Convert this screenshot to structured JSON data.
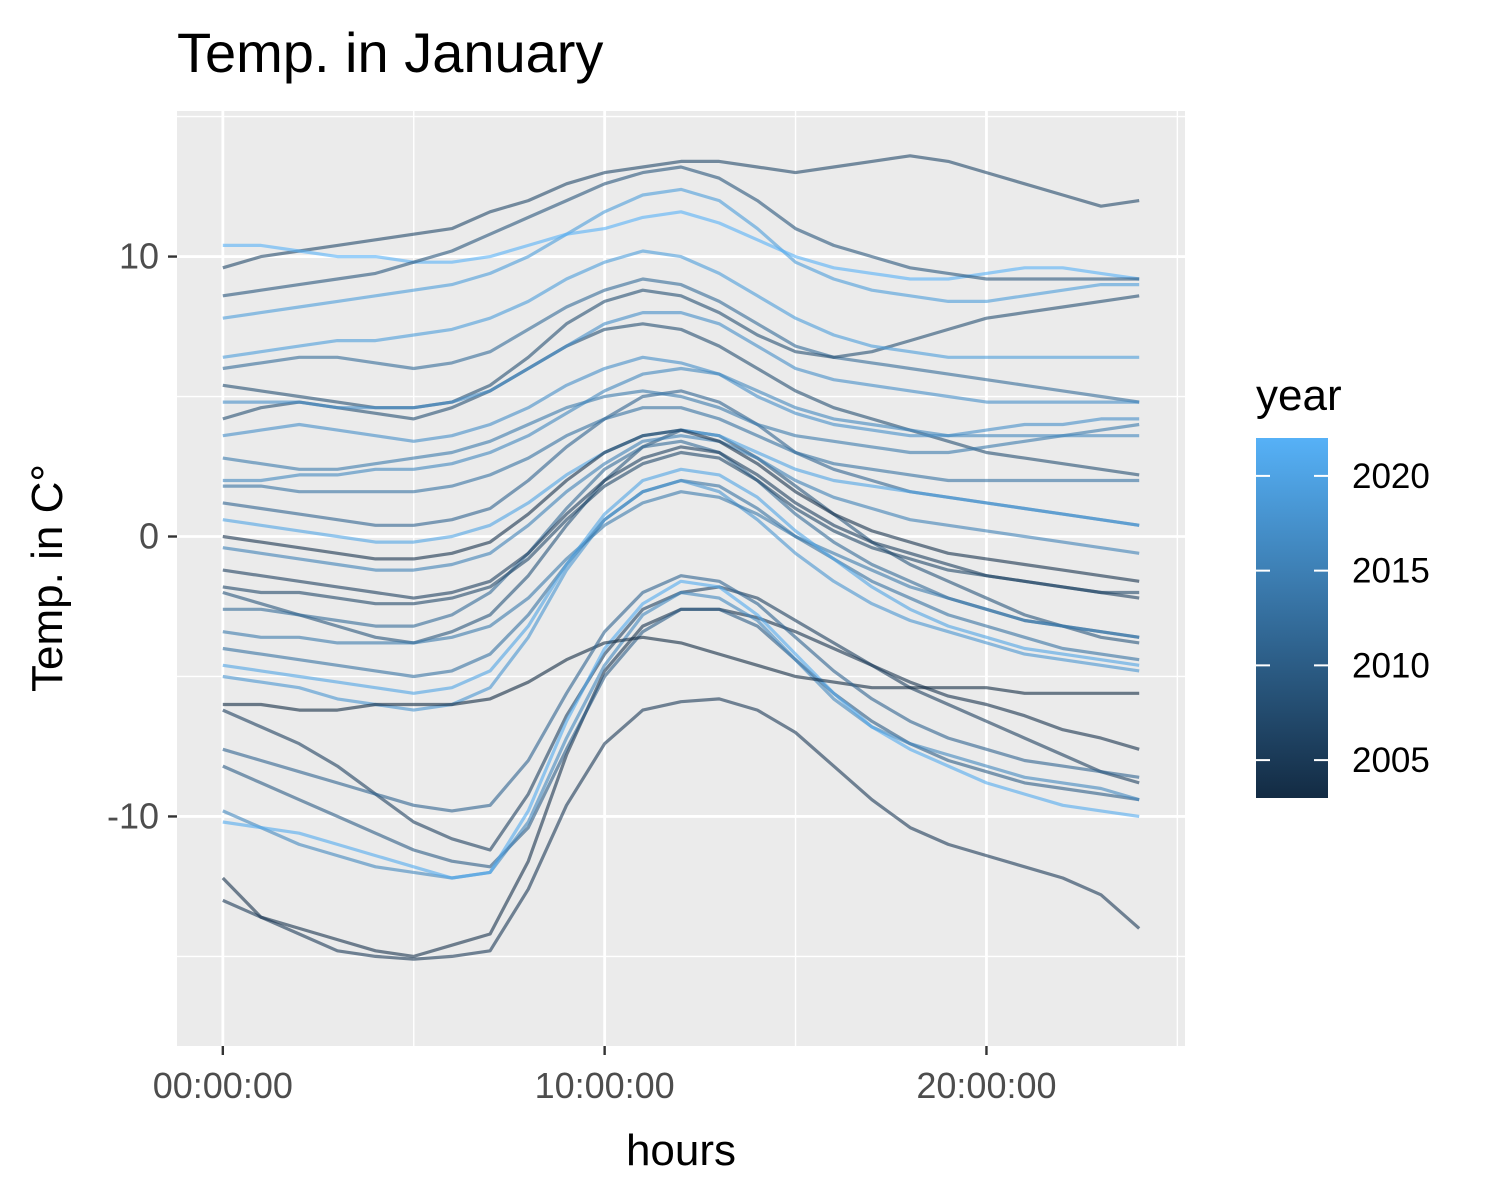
{
  "chart_data": {
    "type": "line",
    "title": "Temp. in January",
    "xlabel": "hours",
    "ylabel": "Temp. in C°",
    "x_axis": {
      "unit": "hours",
      "range": [
        -1.2,
        25.2
      ],
      "major_ticks": [
        0,
        10,
        20
      ],
      "tick_labels": [
        "00:00:00",
        "10:00:00",
        "20:00:00"
      ]
    },
    "y_axis": {
      "range": [
        -18.2,
        15.2
      ],
      "major_ticks": [
        -10,
        0,
        10
      ],
      "tick_labels": [
        "-10",
        "0",
        "10"
      ]
    },
    "grid": true,
    "panel_background": "#ebebeb",
    "grid_color": "#ffffff",
    "line_opacity": 0.6,
    "legend": {
      "title": "year",
      "placement": "right",
      "type": "colorbar",
      "range": [
        2003,
        2022
      ],
      "ticks": [
        2005,
        2010,
        2015,
        2020
      ],
      "tick_labels": [
        "2005",
        "2010",
        "2015",
        "2020"
      ],
      "color_low": "#132b43",
      "color_high": "#56b1f7"
    },
    "series": [
      {
        "year": 2004,
        "values": [
          -12.2,
          -13.6,
          -14.0,
          -14.4,
          -14.8,
          -15.0,
          -14.6,
          -14.2,
          -11.6,
          -7.8,
          -4.8,
          -3.2,
          -2.6,
          -2.6,
          -2.9,
          -3.4,
          -4.0,
          -4.6,
          -5.2,
          -5.7,
          -6.0,
          -6.4,
          -6.9,
          -7.2,
          -7.6
        ]
      },
      {
        "year": 2005,
        "values": [
          -13.0,
          -13.6,
          -14.2,
          -14.8,
          -15.0,
          -15.1,
          -15.0,
          -14.8,
          -12.6,
          -9.6,
          -7.4,
          -6.2,
          -5.9,
          -5.8,
          -6.2,
          -7.0,
          -8.2,
          -9.4,
          -10.4,
          -11.0,
          -11.4,
          -11.8,
          -12.2,
          -12.8,
          -14.0
        ]
      },
      {
        "year": 2006,
        "values": [
          -6.2,
          -6.8,
          -7.4,
          -8.2,
          -9.2,
          -10.2,
          -10.8,
          -11.2,
          -9.2,
          -6.4,
          -4.2,
          -2.6,
          -2.0,
          -1.8,
          -2.2,
          -3.0,
          -3.8,
          -4.6,
          -5.4,
          -6.0,
          -6.6,
          -7.2,
          -7.8,
          -8.4,
          -8.8
        ]
      },
      {
        "year": 2007,
        "values": [
          9.6,
          10.0,
          10.2,
          10.4,
          10.6,
          10.8,
          11.0,
          11.6,
          12.0,
          12.6,
          13.0,
          13.2,
          13.4,
          13.4,
          13.2,
          13.0,
          13.2,
          13.4,
          13.6,
          13.4,
          13.0,
          12.6,
          12.2,
          11.8,
          12.0
        ]
      },
      {
        "year": 2008,
        "values": [
          4.2,
          4.6,
          4.8,
          4.6,
          4.4,
          4.2,
          4.6,
          5.2,
          6.0,
          6.8,
          7.4,
          7.6,
          7.4,
          6.8,
          6.0,
          5.2,
          4.6,
          4.2,
          3.8,
          3.4,
          3.0,
          2.8,
          2.6,
          2.4,
          2.2
        ]
      },
      {
        "year": 2009,
        "values": [
          -2.0,
          -2.4,
          -2.8,
          -3.2,
          -3.6,
          -3.8,
          -3.4,
          -2.8,
          -1.4,
          0.4,
          2.0,
          3.2,
          3.8,
          3.6,
          2.8,
          1.8,
          0.8,
          -0.2,
          -1.0,
          -1.6,
          -2.2,
          -2.8,
          -3.2,
          -3.6,
          -3.8
        ]
      },
      {
        "year": 2010,
        "values": [
          -8.2,
          -8.8,
          -9.4,
          -10.0,
          -10.6,
          -11.2,
          -11.6,
          -11.8,
          -10.4,
          -7.6,
          -5.0,
          -3.4,
          -2.6,
          -2.6,
          -3.2,
          -4.4,
          -5.6,
          -6.6,
          -7.4,
          -8.0,
          -8.4,
          -8.8,
          -9.0,
          -9.2,
          -9.4
        ]
      },
      {
        "year": 2011,
        "values": [
          1.2,
          1.0,
          0.8,
          0.6,
          0.4,
          0.4,
          0.6,
          1.0,
          2.0,
          3.2,
          4.2,
          5.0,
          5.2,
          4.8,
          4.0,
          3.0,
          2.4,
          2.0,
          1.6,
          1.4,
          1.2,
          1.0,
          0.8,
          0.6,
          0.4
        ]
      },
      {
        "year": 2012,
        "values": [
          6.0,
          6.2,
          6.4,
          6.4,
          6.2,
          6.0,
          6.2,
          6.6,
          7.4,
          8.2,
          8.8,
          9.2,
          9.0,
          8.4,
          7.6,
          6.8,
          6.4,
          6.2,
          6.0,
          5.8,
          5.6,
          5.4,
          5.2,
          5.0,
          4.8
        ]
      },
      {
        "year": 2013,
        "values": [
          -4.0,
          -4.2,
          -4.4,
          -4.6,
          -4.8,
          -5.0,
          -4.8,
          -4.2,
          -2.8,
          -1.0,
          0.6,
          1.6,
          2.0,
          1.8,
          1.0,
          0.0,
          -0.8,
          -1.6,
          -2.2,
          -2.8,
          -3.2,
          -3.6,
          -4.0,
          -4.2,
          -4.4
        ]
      },
      {
        "year": 2014,
        "values": [
          2.8,
          2.6,
          2.4,
          2.4,
          2.6,
          2.8,
          3.0,
          3.4,
          4.0,
          4.6,
          5.0,
          5.2,
          5.0,
          4.6,
          4.0,
          3.6,
          3.4,
          3.2,
          3.0,
          3.0,
          3.2,
          3.4,
          3.6,
          3.8,
          4.0
        ]
      },
      {
        "year": 2015,
        "values": [
          -0.4,
          -0.6,
          -0.8,
          -1.0,
          -1.2,
          -1.2,
          -1.0,
          -0.6,
          0.4,
          1.6,
          2.6,
          3.4,
          3.6,
          3.4,
          2.8,
          2.0,
          1.4,
          1.0,
          0.6,
          0.4,
          0.2,
          0.0,
          -0.2,
          -0.4,
          -0.6
        ]
      },
      {
        "year": 2016,
        "values": [
          -9.8,
          -10.4,
          -11.0,
          -11.4,
          -11.8,
          -12.0,
          -12.2,
          -12.0,
          -10.2,
          -7.2,
          -4.6,
          -2.8,
          -2.0,
          -2.2,
          -3.0,
          -4.4,
          -5.8,
          -6.8,
          -7.4,
          -7.8,
          -8.2,
          -8.6,
          -8.8,
          -9.0,
          -9.4
        ]
      },
      {
        "year": 2017,
        "values": [
          3.6,
          3.8,
          4.0,
          3.8,
          3.6,
          3.4,
          3.6,
          4.0,
          4.6,
          5.4,
          6.0,
          6.4,
          6.2,
          5.8,
          5.0,
          4.4,
          4.0,
          3.8,
          3.6,
          3.6,
          3.8,
          4.0,
          4.0,
          4.2,
          4.2
        ]
      },
      {
        "year": 2018,
        "values": [
          -5.0,
          -5.2,
          -5.4,
          -5.8,
          -6.0,
          -6.2,
          -6.0,
          -5.4,
          -3.6,
          -1.2,
          0.6,
          1.6,
          2.0,
          1.6,
          0.6,
          -0.6,
          -1.6,
          -2.4,
          -3.0,
          -3.4,
          -3.8,
          -4.2,
          -4.4,
          -4.6,
          -4.8
        ]
      },
      {
        "year": 2019,
        "values": [
          7.8,
          8.0,
          8.2,
          8.4,
          8.6,
          8.8,
          9.0,
          9.4,
          10.0,
          10.8,
          11.6,
          12.2,
          12.4,
          12.0,
          11.0,
          9.8,
          9.2,
          8.8,
          8.6,
          8.4,
          8.4,
          8.6,
          8.8,
          9.0,
          9.0
        ]
      },
      {
        "year": 2020,
        "values": [
          0.6,
          0.4,
          0.2,
          0.0,
          -0.2,
          -0.2,
          0.0,
          0.4,
          1.2,
          2.2,
          3.0,
          3.6,
          3.8,
          3.6,
          3.0,
          2.4,
          2.0,
          1.8,
          1.6,
          1.4,
          1.2,
          1.0,
          0.8,
          0.6,
          0.4
        ]
      },
      {
        "year": 2021,
        "values": [
          -10.2,
          -10.4,
          -10.6,
          -11.0,
          -11.4,
          -11.8,
          -12.2,
          -12.0,
          -9.8,
          -6.6,
          -4.0,
          -2.4,
          -1.6,
          -1.8,
          -2.8,
          -4.2,
          -5.6,
          -6.8,
          -7.6,
          -8.2,
          -8.8,
          -9.2,
          -9.6,
          -9.8,
          -10.0
        ]
      },
      {
        "year": 2022,
        "values": [
          10.4,
          10.4,
          10.2,
          10.0,
          10.0,
          9.8,
          9.8,
          10.0,
          10.4,
          10.8,
          11.0,
          11.4,
          11.6,
          11.2,
          10.6,
          10.0,
          9.6,
          9.4,
          9.2,
          9.2,
          9.4,
          9.6,
          9.6,
          9.4,
          9.2
        ]
      },
      {
        "year": 2003,
        "values": [
          -6.0,
          -6.0,
          -6.2,
          -6.2,
          -6.0,
          -6.0,
          -6.0,
          -5.8,
          -5.2,
          -4.4,
          -3.8,
          -3.6,
          -3.8,
          -4.2,
          -4.6,
          -5.0,
          -5.2,
          -5.4,
          -5.4,
          -5.4,
          -5.4,
          -5.6,
          -5.6,
          -5.6,
          -5.6
        ]
      },
      {
        "year": 2012,
        "values": [
          -2.6,
          -2.6,
          -2.8,
          -3.0,
          -3.2,
          -3.2,
          -2.8,
          -2.0,
          -0.6,
          1.0,
          2.4,
          3.2,
          3.4,
          3.0,
          2.0,
          0.8,
          -0.2,
          -1.0,
          -1.6,
          -2.2,
          -2.6,
          -3.0,
          -3.2,
          -3.4,
          -3.6
        ]
      },
      {
        "year": 2008,
        "values": [
          5.4,
          5.2,
          5.0,
          4.8,
          4.6,
          4.6,
          4.8,
          5.4,
          6.4,
          7.6,
          8.4,
          8.8,
          8.6,
          8.0,
          7.2,
          6.6,
          6.4,
          6.6,
          7.0,
          7.4,
          7.8,
          8.0,
          8.2,
          8.4,
          8.6
        ]
      },
      {
        "year": 2006,
        "values": [
          -1.2,
          -1.4,
          -1.6,
          -1.8,
          -2.0,
          -2.2,
          -2.0,
          -1.6,
          -0.6,
          0.8,
          2.0,
          2.8,
          3.2,
          3.0,
          2.2,
          1.2,
          0.4,
          -0.2,
          -0.6,
          -1.0,
          -1.4,
          -1.6,
          -1.8,
          -2.0,
          -2.2
        ]
      },
      {
        "year": 2016,
        "values": [
          2.0,
          2.0,
          2.2,
          2.2,
          2.4,
          2.4,
          2.6,
          3.0,
          3.6,
          4.4,
          5.2,
          5.8,
          6.0,
          5.8,
          5.2,
          4.6,
          4.2,
          4.0,
          3.8,
          3.6,
          3.6,
          3.6,
          3.6,
          3.6,
          3.6
        ]
      },
      {
        "year": 2011,
        "values": [
          -7.6,
          -8.0,
          -8.4,
          -8.8,
          -9.2,
          -9.6,
          -9.8,
          -9.6,
          -8.0,
          -5.6,
          -3.4,
          -2.0,
          -1.4,
          -1.6,
          -2.4,
          -3.6,
          -4.8,
          -5.8,
          -6.6,
          -7.2,
          -7.6,
          -8.0,
          -8.2,
          -8.4,
          -8.6
        ]
      },
      {
        "year": 2019,
        "values": [
          6.4,
          6.6,
          6.8,
          7.0,
          7.0,
          7.2,
          7.4,
          7.8,
          8.4,
          9.2,
          9.8,
          10.2,
          10.0,
          9.4,
          8.6,
          7.8,
          7.2,
          6.8,
          6.6,
          6.4,
          6.4,
          6.4,
          6.4,
          6.4,
          6.4
        ]
      },
      {
        "year": 2004,
        "values": [
          0.0,
          -0.2,
          -0.4,
          -0.6,
          -0.8,
          -0.8,
          -0.6,
          -0.2,
          0.8,
          2.0,
          3.0,
          3.6,
          3.8,
          3.4,
          2.6,
          1.6,
          0.8,
          0.2,
          -0.2,
          -0.6,
          -0.8,
          -1.0,
          -1.2,
          -1.4,
          -1.6
        ]
      },
      {
        "year": 2014,
        "values": [
          -3.4,
          -3.6,
          -3.6,
          -3.8,
          -3.8,
          -3.8,
          -3.6,
          -3.2,
          -2.2,
          -0.8,
          0.4,
          1.2,
          1.6,
          1.4,
          0.8,
          0.0,
          -0.6,
          -1.2,
          -1.8,
          -2.2,
          -2.6,
          -3.0,
          -3.2,
          -3.4,
          -3.6
        ]
      },
      {
        "year": 2009,
        "values": [
          8.6,
          8.8,
          9.0,
          9.2,
          9.4,
          9.8,
          10.2,
          10.8,
          11.4,
          12.0,
          12.6,
          13.0,
          13.2,
          12.8,
          12.0,
          11.0,
          10.4,
          10.0,
          9.6,
          9.4,
          9.2,
          9.2,
          9.2,
          9.2,
          9.2
        ]
      },
      {
        "year": 2020,
        "values": [
          -4.6,
          -4.8,
          -5.0,
          -5.2,
          -5.4,
          -5.6,
          -5.4,
          -4.8,
          -3.2,
          -1.0,
          0.8,
          2.0,
          2.4,
          2.2,
          1.4,
          0.2,
          -0.8,
          -1.8,
          -2.6,
          -3.2,
          -3.6,
          -4.0,
          -4.2,
          -4.4,
          -4.6
        ]
      },
      {
        "year": 2013,
        "values": [
          1.8,
          1.8,
          1.6,
          1.6,
          1.6,
          1.6,
          1.8,
          2.2,
          2.8,
          3.6,
          4.2,
          4.6,
          4.6,
          4.2,
          3.6,
          3.0,
          2.6,
          2.4,
          2.2,
          2.0,
          2.0,
          2.0,
          2.0,
          2.0,
          2.0
        ]
      },
      {
        "year": 2007,
        "values": [
          -1.8,
          -2.0,
          -2.0,
          -2.2,
          -2.4,
          -2.4,
          -2.2,
          -1.8,
          -0.8,
          0.6,
          1.8,
          2.6,
          3.0,
          2.8,
          2.0,
          1.0,
          0.2,
          -0.4,
          -0.8,
          -1.2,
          -1.4,
          -1.6,
          -1.8,
          -2.0,
          -2.0
        ]
      },
      {
        "year": 2017,
        "values": [
          4.8,
          4.8,
          4.8,
          4.6,
          4.6,
          4.6,
          4.8,
          5.2,
          6.0,
          6.8,
          7.6,
          8.0,
          8.0,
          7.6,
          6.8,
          6.0,
          5.6,
          5.4,
          5.2,
          5.0,
          4.8,
          4.8,
          4.8,
          4.8,
          4.8
        ]
      }
    ]
  }
}
